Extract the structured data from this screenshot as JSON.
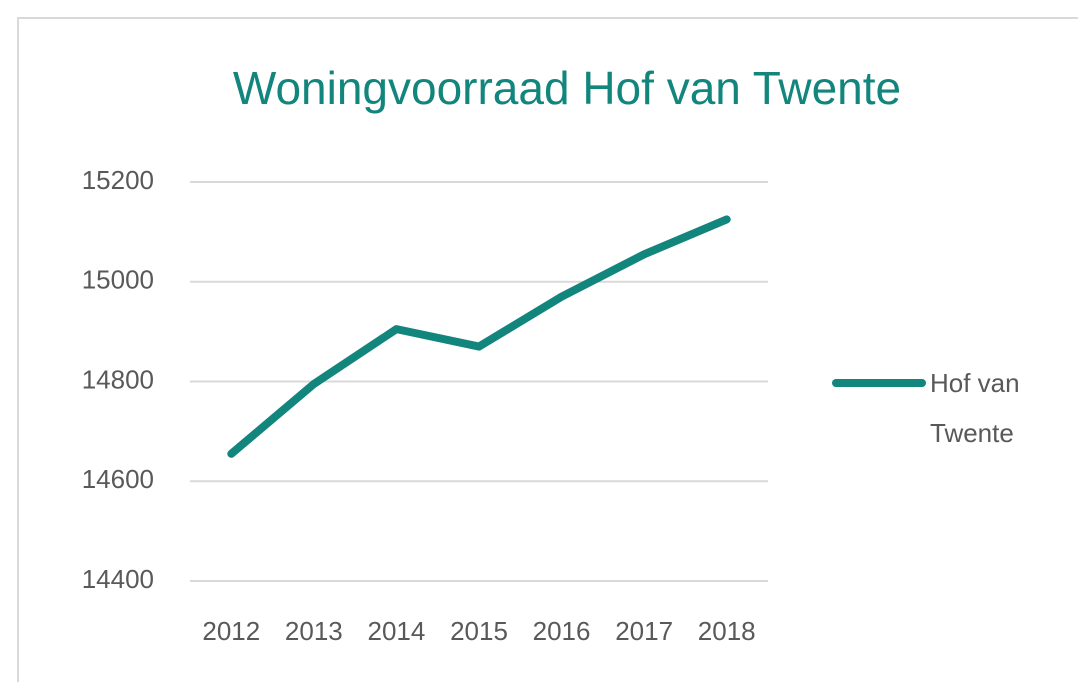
{
  "chart_data": {
    "type": "line",
    "title": "Woningvoorraad Hof van Twente",
    "categories": [
      "2012",
      "2013",
      "2014",
      "2015",
      "2016",
      "2017",
      "2018"
    ],
    "series": [
      {
        "name": "Hof van Twente",
        "color": "#12857d",
        "values": [
          14655,
          14795,
          14905,
          14870,
          14970,
          15055,
          15125
        ]
      }
    ],
    "ylim": [
      14400,
      15200
    ],
    "yticks": [
      14400,
      14600,
      14800,
      15000,
      15200
    ],
    "grid": true,
    "legend": "right"
  }
}
